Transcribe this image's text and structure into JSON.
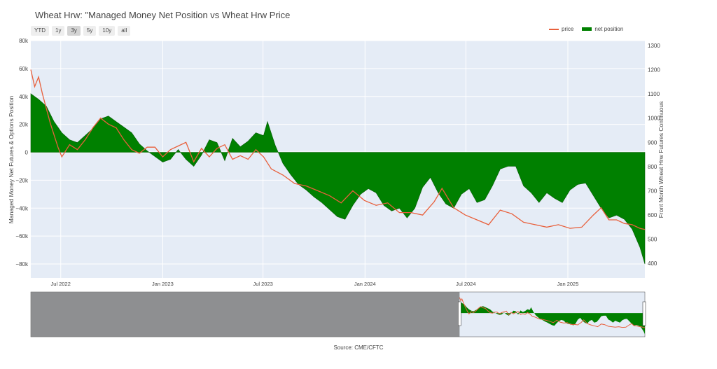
{
  "title": "Wheat Hrw: \"Managed Money Net Position vs Wheat Hrw Price",
  "range_buttons": [
    "YTD",
    "1y",
    "3y",
    "5y",
    "10y",
    "all"
  ],
  "active_range": "3y",
  "legend": [
    {
      "label": "price",
      "color": "#e8603c"
    },
    {
      "label": "net position",
      "color": "#008000"
    }
  ],
  "source": "Source: CME/CFTC",
  "chart_data": {
    "type": "area",
    "ylabel": "Managed Money Net Futures & Options Position",
    "y2label": "Front Month Wheat Hrw Futures Continuous",
    "ylim": [
      -90000,
      80000
    ],
    "y2lim": [
      340,
      1320
    ],
    "yticks": [
      80000,
      60000,
      40000,
      20000,
      0,
      -20000,
      -40000,
      -60000,
      -80000
    ],
    "ytick_labels": [
      "80k",
      "60k",
      "40k",
      "20k",
      "0",
      "−20k",
      "−40k",
      "−60k",
      "−80k"
    ],
    "y2ticks": [
      400,
      500,
      600,
      700,
      800,
      900,
      1000,
      1100,
      1200,
      1300
    ],
    "y2tick_labels": [
      "400",
      "500",
      "600",
      "700",
      "800",
      "900",
      "1000",
      "1100",
      "1200",
      "1300"
    ],
    "xlim": [
      "2022-05-08",
      "2025-05-20"
    ],
    "xticks": [
      "2022-07-01",
      "2023-01-01",
      "2023-07-01",
      "2024-01-01",
      "2024-07-01",
      "2025-01-01"
    ],
    "xtick_labels": [
      "Jul 2022",
      "Jan 2023",
      "Jul 2023",
      "Jan 2024",
      "Jul 2024",
      "Jan 2025"
    ],
    "grid": true,
    "legend_position": "top-right",
    "series": [
      {
        "name": "net position",
        "axis": "left",
        "color": "#008000",
        "x": [
          "2022-05-08",
          "2022-05-22",
          "2022-06-05",
          "2022-06-19",
          "2022-07-03",
          "2022-07-17",
          "2022-07-31",
          "2022-08-14",
          "2022-08-28",
          "2022-09-11",
          "2022-09-25",
          "2022-10-09",
          "2022-10-23",
          "2022-11-06",
          "2022-11-20",
          "2022-12-04",
          "2022-12-18",
          "2023-01-01",
          "2023-01-15",
          "2023-01-29",
          "2023-02-12",
          "2023-02-26",
          "2023-03-12",
          "2023-03-26",
          "2023-04-09",
          "2023-04-23",
          "2023-05-07",
          "2023-05-21",
          "2023-06-04",
          "2023-06-18",
          "2023-07-02",
          "2023-07-09",
          "2023-07-23",
          "2023-08-06",
          "2023-08-20",
          "2023-09-03",
          "2023-09-17",
          "2023-10-01",
          "2023-10-15",
          "2023-10-29",
          "2023-11-12",
          "2023-11-26",
          "2023-12-10",
          "2023-12-24",
          "2024-01-07",
          "2024-01-21",
          "2024-02-04",
          "2024-02-18",
          "2024-03-03",
          "2024-03-17",
          "2024-03-31",
          "2024-04-14",
          "2024-04-28",
          "2024-05-12",
          "2024-05-26",
          "2024-06-09",
          "2024-06-23",
          "2024-07-07",
          "2024-07-21",
          "2024-08-04",
          "2024-08-18",
          "2024-09-01",
          "2024-09-15",
          "2024-09-29",
          "2024-10-13",
          "2024-10-27",
          "2024-11-10",
          "2024-11-24",
          "2024-12-08",
          "2024-12-22",
          "2025-01-05",
          "2025-01-19",
          "2025-02-02",
          "2025-02-16",
          "2025-03-02",
          "2025-03-16",
          "2025-03-30",
          "2025-04-13",
          "2025-04-27",
          "2025-05-11",
          "2025-05-20"
        ],
        "values": [
          42000,
          38000,
          33000,
          22000,
          14000,
          9000,
          7000,
          12000,
          17000,
          24000,
          26000,
          22000,
          18000,
          14000,
          6000,
          1000,
          -3000,
          -7000,
          -5000,
          2000,
          -5000,
          -10000,
          -2000,
          9000,
          7000,
          -6000,
          10000,
          4000,
          8000,
          14000,
          12000,
          22000,
          5000,
          -8000,
          -16000,
          -23000,
          -27000,
          -32000,
          -36000,
          -41000,
          -46000,
          -48000,
          -38000,
          -30000,
          -26000,
          -29000,
          -38000,
          -42000,
          -40000,
          -47000,
          -40000,
          -25000,
          -18000,
          -29000,
          -37000,
          -40000,
          -30000,
          -26000,
          -36000,
          -34000,
          -24000,
          -12000,
          -10000,
          -10000,
          -24000,
          -29000,
          -36000,
          -29000,
          -33000,
          -36000,
          -27000,
          -23000,
          -22000,
          -31000,
          -40000,
          -47000,
          -45000,
          -48000,
          -55000,
          -68000,
          -80000
        ]
      },
      {
        "name": "price",
        "axis": "right",
        "color": "#e8603c",
        "x": [
          "2022-05-08",
          "2022-05-15",
          "2022-05-22",
          "2022-05-29",
          "2022-06-12",
          "2022-06-26",
          "2022-07-03",
          "2022-07-17",
          "2022-07-31",
          "2022-08-14",
          "2022-08-28",
          "2022-09-11",
          "2022-09-25",
          "2022-10-09",
          "2022-10-23",
          "2022-11-06",
          "2022-11-20",
          "2022-12-04",
          "2022-12-18",
          "2023-01-01",
          "2023-01-15",
          "2023-01-29",
          "2023-02-12",
          "2023-02-26",
          "2023-03-12",
          "2023-03-26",
          "2023-04-09",
          "2023-04-23",
          "2023-05-07",
          "2023-05-21",
          "2023-06-04",
          "2023-06-18",
          "2023-07-02",
          "2023-07-16",
          "2023-08-06",
          "2023-08-27",
          "2023-09-17",
          "2023-10-08",
          "2023-10-29",
          "2023-11-19",
          "2023-12-10",
          "2023-12-31",
          "2024-01-21",
          "2024-02-11",
          "2024-03-03",
          "2024-03-24",
          "2024-04-14",
          "2024-05-05",
          "2024-05-19",
          "2024-06-09",
          "2024-06-30",
          "2024-07-21",
          "2024-08-11",
          "2024-09-01",
          "2024-09-22",
          "2024-10-13",
          "2024-11-03",
          "2024-11-24",
          "2024-12-15",
          "2025-01-05",
          "2025-01-26",
          "2025-02-16",
          "2025-03-02",
          "2025-03-16",
          "2025-03-30",
          "2025-04-13",
          "2025-04-27",
          "2025-05-11",
          "2025-05-20"
        ],
        "values": [
          1200,
          1130,
          1170,
          1100,
          980,
          880,
          840,
          890,
          870,
          910,
          960,
          1000,
          975,
          960,
          910,
          870,
          855,
          880,
          880,
          840,
          870,
          885,
          900,
          820,
          875,
          840,
          875,
          890,
          830,
          845,
          830,
          870,
          840,
          790,
          765,
          730,
          720,
          700,
          680,
          650,
          700,
          660,
          640,
          650,
          610,
          610,
          600,
          655,
          710,
          630,
          600,
          580,
          560,
          620,
          605,
          570,
          560,
          550,
          560,
          545,
          550,
          600,
          630,
          580,
          580,
          565,
          560,
          545,
          540
        ]
      }
    ]
  }
}
